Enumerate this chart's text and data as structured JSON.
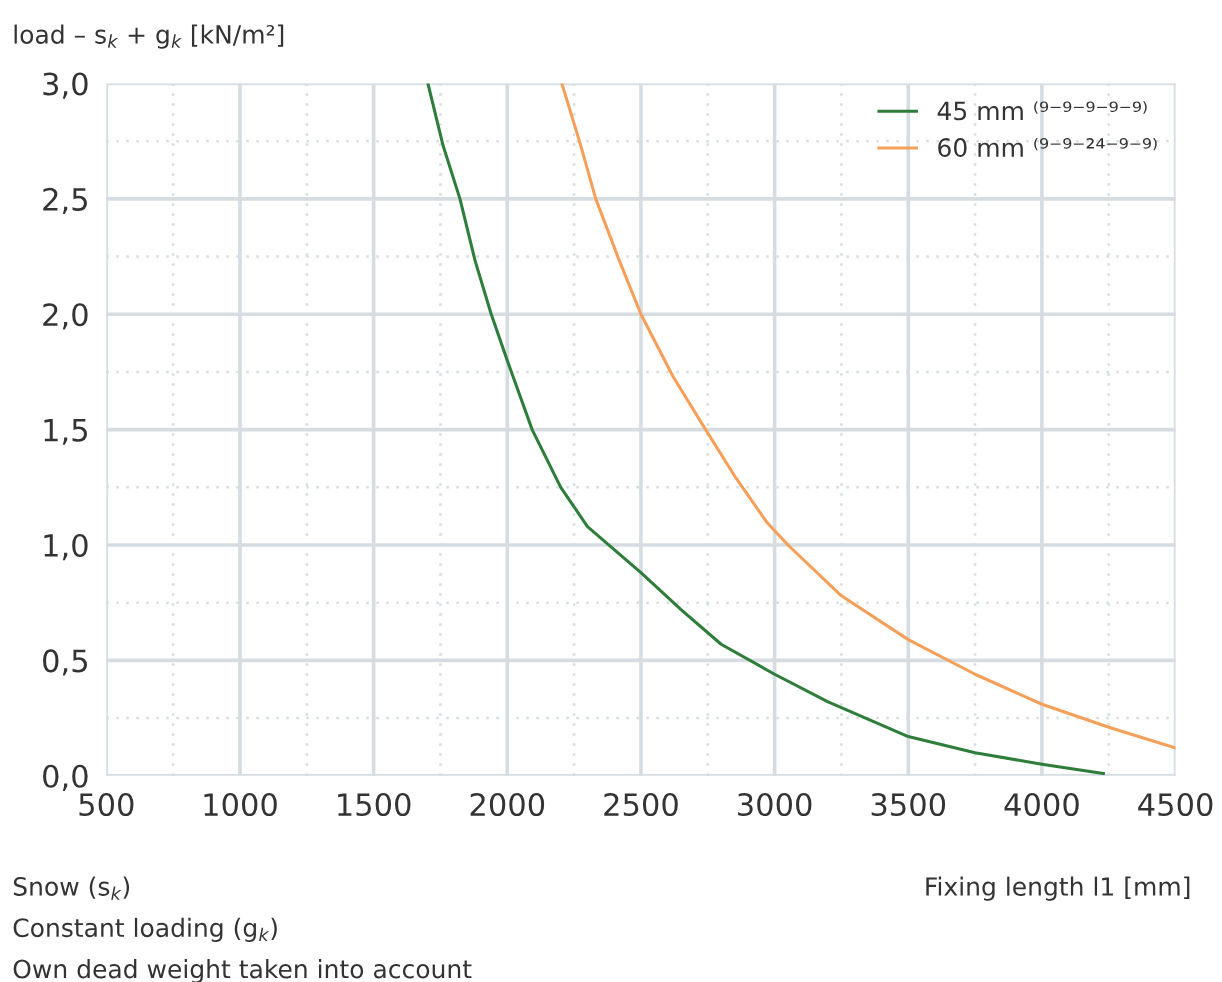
{
  "chart_data": {
    "type": "line",
    "ylabel": "load – s$_{k}$ + g$_{k}$ [kN/m²]",
    "xlabel": "Fixing length l1 [mm]",
    "annotations": [
      "Snow (s$_{k}$)",
      "Constant loading (g$_{k}$)",
      "Own dead weight taken into account"
    ],
    "series": [
      {
        "name": "45 mm ⁽⁹⁻⁹⁻⁹⁻⁹⁻⁹⁾",
        "color": "#2e7d3a",
        "x": [
          1703,
          1760,
          1823,
          1880,
          1940,
          2000,
          2093,
          2200,
          2300,
          2400,
          2500,
          2650,
          2800,
          3000,
          3200,
          3500,
          3750,
          4000,
          4230
        ],
        "values": [
          3.0,
          2.73,
          2.5,
          2.23,
          2.0,
          1.8,
          1.5,
          1.25,
          1.08,
          0.98,
          0.88,
          0.72,
          0.57,
          0.44,
          0.32,
          0.17,
          0.1,
          0.05,
          0.01
        ]
      },
      {
        "name": "60 mm ⁽⁹⁻⁹⁻²⁴⁻⁹⁻⁹⁾",
        "color": "#f5a05a",
        "x": [
          2204,
          2270,
          2331,
          2420,
          2500,
          2620,
          2742,
          2850,
          2970,
          3050,
          3250,
          3500,
          3750,
          4000,
          4250,
          4500
        ],
        "values": [
          3.0,
          2.75,
          2.5,
          2.23,
          2.0,
          1.73,
          1.5,
          1.3,
          1.1,
          1.0,
          0.78,
          0.59,
          0.44,
          0.31,
          0.21,
          0.12
        ]
      }
    ],
    "xlim": [
      500,
      4500
    ],
    "xticks": [
      500,
      1000,
      1500,
      2000,
      2500,
      3000,
      3500,
      4000,
      4500
    ],
    "ylim": [
      0,
      3
    ],
    "yticks": [
      {
        "value": 0,
        "label": "0,0"
      },
      {
        "value": 0.5,
        "label": "0,5"
      },
      {
        "value": 1,
        "label": "1,0"
      },
      {
        "value": 1.5,
        "label": "1,5"
      },
      {
        "value": 2,
        "label": "2,0"
      },
      {
        "value": 2.5,
        "label": "2,5"
      },
      {
        "value": 3,
        "label": "3,0"
      }
    ],
    "grid": true,
    "legend": "top right",
    "marker": "none",
    "line_style": "solid"
  }
}
